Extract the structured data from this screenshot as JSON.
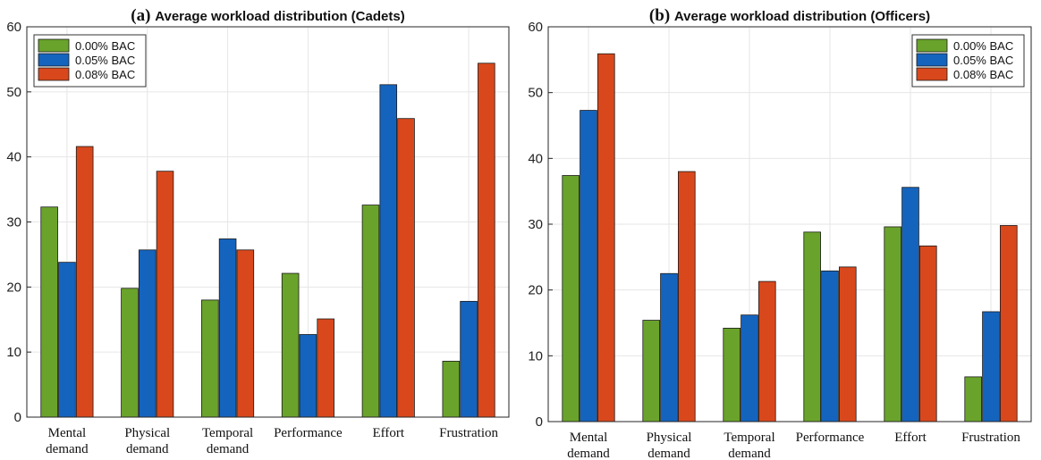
{
  "colors": {
    "series": [
      "#6aa32b",
      "#1464be",
      "#d9481c"
    ],
    "grid": "#e6e6e6",
    "axis": "#262626",
    "background": "#ffffff"
  },
  "chart_data": [
    {
      "type": "bar",
      "panel_label": "(a)",
      "title": "Average workload distribution (Cadets)",
      "categories": [
        [
          "Mental",
          "demand"
        ],
        [
          "Physical",
          "demand"
        ],
        [
          "Temporal",
          "demand"
        ],
        [
          "Performance"
        ],
        [
          "Effort"
        ],
        [
          "Frustration"
        ]
      ],
      "series": [
        {
          "name": "0.00% BAC",
          "values": [
            32.3,
            19.8,
            18.0,
            22.1,
            32.6,
            8.6
          ]
        },
        {
          "name": "0.05% BAC",
          "values": [
            23.8,
            25.7,
            27.4,
            12.7,
            51.1,
            17.8
          ]
        },
        {
          "name": "0.08% BAC",
          "values": [
            41.6,
            37.8,
            25.7,
            15.1,
            45.9,
            54.4
          ]
        }
      ],
      "ylim": [
        0,
        60
      ],
      "yticks": [
        0,
        10,
        20,
        30,
        40,
        50,
        60
      ],
      "grid": true,
      "legend_position": "top-left"
    },
    {
      "type": "bar",
      "panel_label": "(b)",
      "title": "Average workload distribution (Officers)",
      "categories": [
        [
          "Mental",
          "demand"
        ],
        [
          "Physical",
          "demand"
        ],
        [
          "Temporal",
          "demand"
        ],
        [
          "Performance"
        ],
        [
          "Effort"
        ],
        [
          "Frustration"
        ]
      ],
      "series": [
        {
          "name": "0.00% BAC",
          "values": [
            37.4,
            15.4,
            14.2,
            28.8,
            29.6,
            6.8
          ]
        },
        {
          "name": "0.05% BAC",
          "values": [
            47.3,
            22.5,
            16.2,
            22.9,
            35.6,
            16.7
          ]
        },
        {
          "name": "0.08% BAC",
          "values": [
            55.9,
            38.0,
            21.3,
            23.5,
            26.7,
            29.8
          ]
        }
      ],
      "ylim": [
        0,
        60
      ],
      "yticks": [
        0,
        10,
        20,
        30,
        40,
        50,
        60
      ],
      "grid": true,
      "legend_position": "top-right"
    }
  ]
}
